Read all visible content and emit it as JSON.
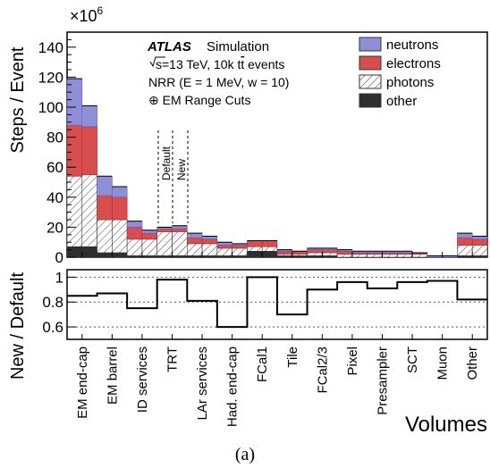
{
  "caption": "(a)",
  "chart_data": [
    {
      "type": "bar",
      "stacked": true,
      "ylabel": "Steps / Event",
      "yscale_label": "×10",
      "yscale_exp": "6",
      "ylim": [
        0,
        150
      ],
      "yticks": [
        "0",
        "20",
        "40",
        "60",
        "80",
        "100",
        "120",
        "140"
      ],
      "annotation": {
        "experiment": "ATLAS",
        "status": "Simulation",
        "energy_prefix": "s",
        "energy_rest": "=13 TeV, 10k t",
        "energy_tbar": "t",
        "energy_suffix": " events",
        "nrr": "NRR (E = 1 MeV, w = 10)",
        "cuts": "⊕ EM Range Cuts",
        "default_label": "Default",
        "new_label": "New"
      },
      "legend": {
        "position": "top-right",
        "entries": [
          {
            "label": "neutrons",
            "color": "#8f8fd8"
          },
          {
            "label": "electrons",
            "color": "#d84d4d"
          },
          {
            "label": "photons",
            "color": "hatched"
          },
          {
            "label": "other",
            "color": "#2f2f2f"
          }
        ]
      },
      "categories": [
        "EM end-cap",
        "EM barrel",
        "ID services",
        "TRT",
        "LAr services",
        "Had. end-cap",
        "FCal1",
        "Tile",
        "FCal2/3",
        "Pixel",
        "Presampler",
        "SCT",
        "Muon",
        "Other"
      ],
      "bins": [
        {
          "other": [
            7,
            7
          ],
          "photons": [
            47,
            48
          ],
          "electrons": [
            34,
            32
          ],
          "neutrons": [
            31,
            14
          ]
        },
        {
          "other": [
            3,
            3
          ],
          "photons": [
            22,
            22
          ],
          "electrons": [
            16,
            15
          ],
          "neutrons": [
            13,
            7
          ]
        },
        {
          "other": [
            1,
            1
          ],
          "photons": [
            11,
            11
          ],
          "electrons": [
            8,
            4
          ],
          "neutrons": [
            4,
            2
          ]
        },
        {
          "other": [
            1,
            1
          ],
          "photons": [
            16,
            16
          ],
          "electrons": [
            2,
            2
          ],
          "neutrons": [
            1,
            2
          ]
        },
        {
          "other": [
            1,
            1
          ],
          "photons": [
            8,
            8
          ],
          "electrons": [
            4,
            3
          ],
          "neutrons": [
            3,
            2
          ]
        },
        {
          "other": [
            1,
            1
          ],
          "photons": [
            5,
            5
          ],
          "electrons": [
            2,
            2
          ],
          "neutrons": [
            2,
            1
          ]
        },
        {
          "other": [
            4,
            4
          ],
          "photons": [
            3,
            3
          ],
          "electrons": [
            4,
            4
          ],
          "neutrons": [
            0,
            0
          ]
        },
        {
          "other": [
            1,
            1
          ],
          "photons": [
            1,
            1
          ],
          "electrons": [
            2,
            2
          ],
          "neutrons": [
            1,
            0
          ]
        },
        {
          "other": [
            1,
            1
          ],
          "photons": [
            2,
            2
          ],
          "electrons": [
            2,
            2
          ],
          "neutrons": [
            1,
            1
          ]
        },
        {
          "other": [
            0,
            0
          ],
          "photons": [
            2,
            2
          ],
          "electrons": [
            2,
            1
          ],
          "neutrons": [
            1,
            1
          ]
        },
        {
          "other": [
            0,
            0
          ],
          "photons": [
            2,
            2
          ],
          "electrons": [
            1,
            1
          ],
          "neutrons": [
            1,
            1
          ]
        },
        {
          "other": [
            0,
            0
          ],
          "photons": [
            2,
            2
          ],
          "electrons": [
            1,
            1
          ],
          "neutrons": [
            1,
            0
          ]
        },
        {
          "other": [
            0,
            0
          ],
          "photons": [
            0,
            0
          ],
          "electrons": [
            0,
            0
          ],
          "neutrons": [
            1,
            1
          ]
        },
        {
          "other": [
            1,
            1
          ],
          "photons": [
            7,
            7
          ],
          "electrons": [
            5,
            4
          ],
          "neutrons": [
            3,
            2
          ]
        }
      ]
    },
    {
      "type": "line",
      "step": true,
      "ylabel": "New / Default",
      "xlabel": "Volumes",
      "ylim": [
        0.5,
        1.06
      ],
      "yticks": [
        "0.6",
        "0.8",
        "1"
      ],
      "reference_lines": [
        0.6,
        0.8,
        1.0
      ],
      "categories": [
        "EM end-cap",
        "EM barrel",
        "ID services",
        "TRT",
        "LAr services",
        "Had. end-cap",
        "FCal1",
        "Tile",
        "FCal2/3",
        "Pixel",
        "Presampler",
        "SCT",
        "Muon",
        "Other"
      ],
      "values": [
        0.85,
        0.87,
        0.75,
        0.98,
        0.81,
        0.6,
        1.0,
        0.7,
        0.9,
        0.96,
        0.91,
        0.96,
        0.97,
        0.82
      ]
    }
  ]
}
